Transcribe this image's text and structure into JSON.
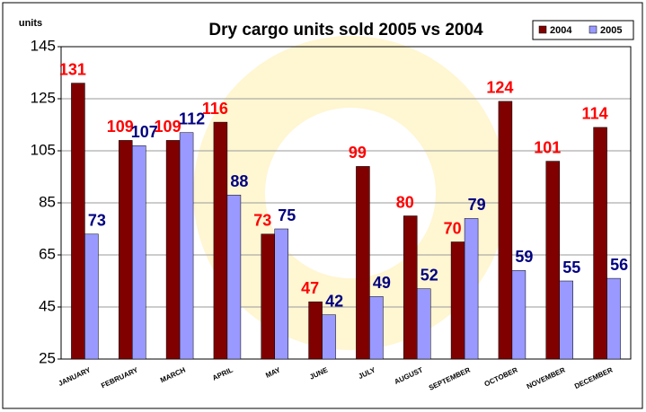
{
  "chart_data": {
    "type": "bar",
    "title": "Dry cargo units sold 2005 vs 2004",
    "y_label": "units",
    "categories": [
      "JANUARY",
      "FEBRUARY",
      "MARCH",
      "APRIL",
      "MAY",
      "JUNE",
      "JULY",
      "AUGUST",
      "SEPTEMBER",
      "OCTOBER",
      "NOVEMBER",
      "DECEMBER"
    ],
    "series": [
      {
        "name": "2004",
        "color": "#800000",
        "label_color": "#ff0000",
        "values": [
          131,
          109,
          109,
          116,
          73,
          47,
          99,
          80,
          70,
          124,
          101,
          114
        ]
      },
      {
        "name": "2005",
        "color": "#9999ff",
        "label_color": "#000080",
        "values": [
          73,
          107,
          112,
          88,
          75,
          42,
          49,
          52,
          79,
          59,
          55,
          56
        ]
      }
    ],
    "ylim": [
      25,
      145
    ],
    "yticks": [
      25,
      45,
      65,
      85,
      105,
      125,
      145
    ],
    "grid": true,
    "legend": "top-right"
  }
}
